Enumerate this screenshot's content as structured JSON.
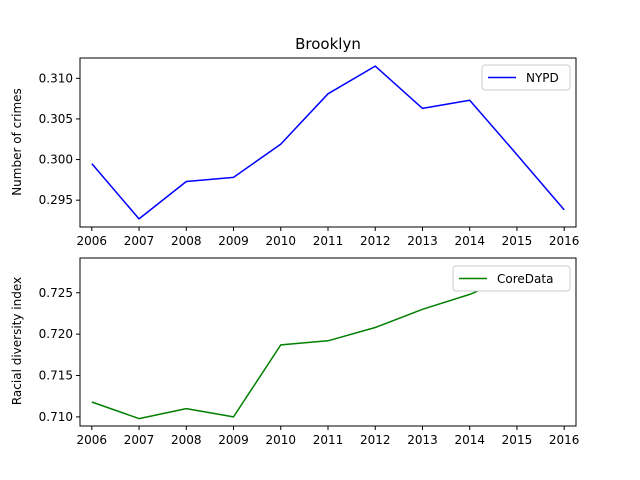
{
  "chart_data": [
    {
      "type": "line",
      "title": "Brooklyn",
      "xlabel": "",
      "ylabel": "Number of crimes",
      "x": [
        2006,
        2007,
        2008,
        2009,
        2010,
        2011,
        2012,
        2013,
        2014,
        2015,
        2016
      ],
      "xlim": [
        2005.75,
        2016.25
      ],
      "ylim": [
        0.2917,
        0.3125
      ],
      "yticks": [
        0.295,
        0.3,
        0.305,
        0.31
      ],
      "ytick_labels": [
        "0.295",
        "0.300",
        "0.305",
        "0.310"
      ],
      "series": [
        {
          "name": "NYPD",
          "color": "#0000ff",
          "values": [
            0.2995,
            0.2927,
            0.2973,
            0.2978,
            0.3019,
            0.3081,
            0.3115,
            0.3063,
            0.3073,
            0.3006,
            0.2938
          ]
        }
      ],
      "legend": "top-right",
      "grid": false
    },
    {
      "type": "line",
      "title": "",
      "xlabel": "",
      "ylabel": "Racial diversity index",
      "x": [
        2006,
        2007,
        2008,
        2009,
        2010,
        2011,
        2012,
        2013,
        2014,
        2015,
        2016
      ],
      "xlim": [
        2005.75,
        2016.25
      ],
      "ylim": [
        0.7089,
        0.7292
      ],
      "yticks": [
        0.71,
        0.715,
        0.72,
        0.725
      ],
      "ytick_labels": [
        "0.710",
        "0.715",
        "0.720",
        "0.725"
      ],
      "series": [
        {
          "name": "CoreData",
          "color": "#008000",
          "values": [
            0.7118,
            0.7098,
            0.711,
            0.71,
            0.7187,
            0.7192,
            0.7208,
            0.723,
            0.7248,
            0.7272,
            0.7282
          ]
        }
      ],
      "legend": "top-right",
      "grid": false
    }
  ]
}
